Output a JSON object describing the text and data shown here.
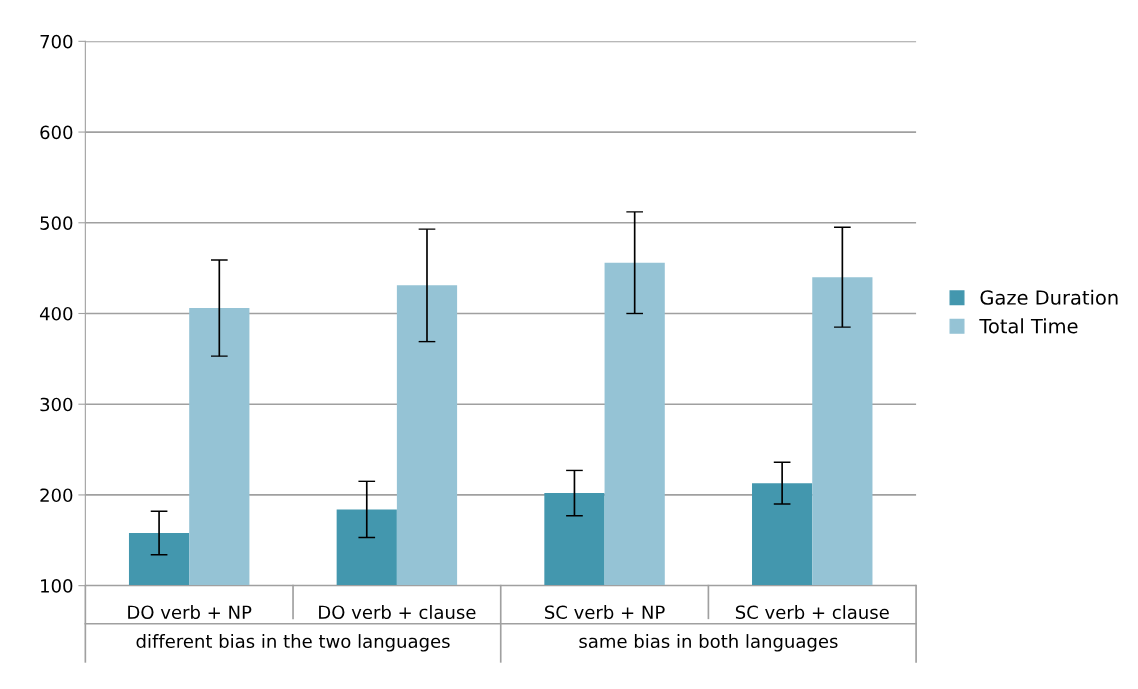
{
  "chart_data": {
    "type": "bar",
    "categories": [
      "DO verb + NP",
      "DO verb + clause",
      "SC verb + NP",
      "SC verb + clause"
    ],
    "series": [
      {
        "name": "Gaze Duration",
        "color": "#4397ae",
        "values": [
          158,
          184,
          202,
          213
        ],
        "errors": [
          24,
          31,
          25,
          23
        ]
      },
      {
        "name": "Total Time",
        "color": "#95c3d5",
        "values": [
          406,
          431,
          456,
          440
        ],
        "errors": [
          53,
          62,
          56,
          55
        ]
      }
    ],
    "annotations": [
      "different bias in the two languages",
      "same bias in both languages"
    ],
    "ylim": [
      100,
      700
    ],
    "yticks": [
      100,
      200,
      300,
      400,
      500,
      600,
      700
    ],
    "grid": "y",
    "legend": "right"
  }
}
